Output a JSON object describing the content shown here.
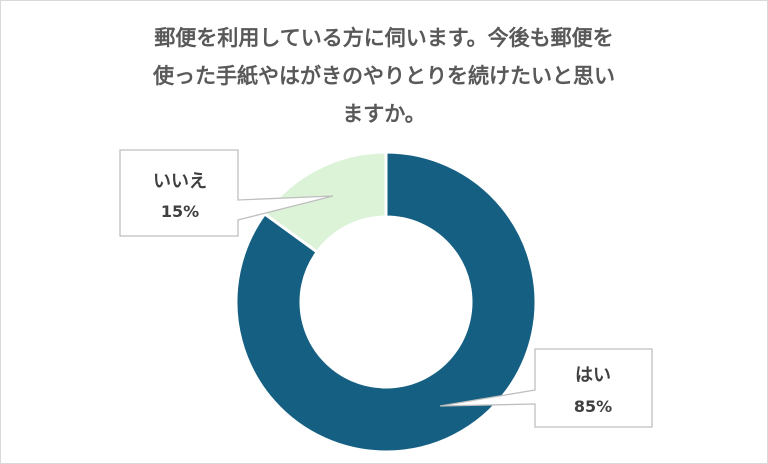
{
  "chart_data": {
    "type": "pie",
    "title": "郵便を利用している方に伺います。今後も郵便を使った手紙やはがきのやりとりを続けたいと思いますか。",
    "categories": [
      "はい",
      "いいえ"
    ],
    "values": [
      85,
      15
    ],
    "value_labels": [
      "85%",
      "15%"
    ],
    "colors": [
      "#155f82",
      "#dcf3d8"
    ],
    "donut": true
  }
}
